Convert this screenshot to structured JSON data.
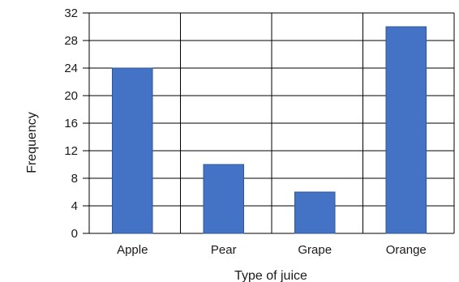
{
  "chart_data": {
    "type": "bar",
    "title": "",
    "xlabel": "Type of juice",
    "ylabel": "Frequency",
    "categories": [
      "Apple",
      "Pear",
      "Grape",
      "Orange"
    ],
    "values": [
      24,
      10,
      6,
      30
    ],
    "ylim": [
      0,
      32
    ],
    "yticks": [
      "0",
      "4",
      "8",
      "12",
      "16",
      "20",
      "24",
      "28",
      "32"
    ],
    "grid": true,
    "bar_color": "#4472C4",
    "bar_edge_color": "#2F5597"
  }
}
